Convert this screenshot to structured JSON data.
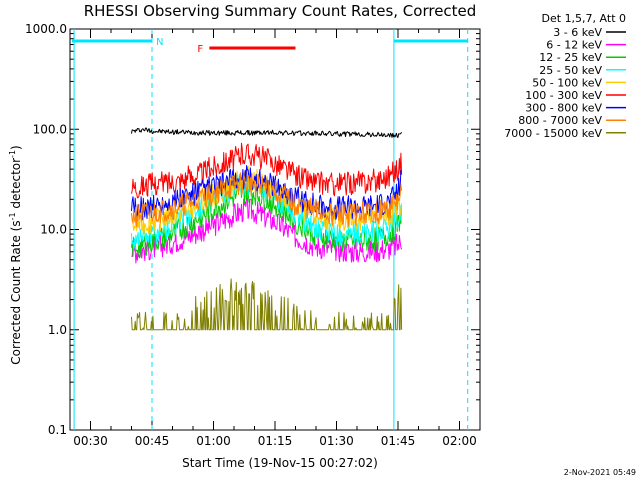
{
  "chart_data": {
    "type": "line",
    "title": "RHESSI Observing Summary Count Rates, Corrected",
    "xlabel": "Start Time (19-Nov-15 00:27:02)",
    "ylabel_main": "Corrected Count Rate (s",
    "ylabel_sup1": "-1",
    "ylabel_mid": " detector",
    "ylabel_sup2": "-1",
    "ylabel_end": ")",
    "y_scale": "log",
    "xlim": [
      "00:25",
      "02:05"
    ],
    "ylim": [
      0.1,
      1000
    ],
    "x_ticks": [
      {
        "t": "00:30",
        "label": "00:30"
      },
      {
        "t": "00:45",
        "label": "00:45"
      },
      {
        "t": "01:00",
        "label": "01:00"
      },
      {
        "t": "01:15",
        "label": "01:15"
      },
      {
        "t": "01:30",
        "label": "01:30"
      },
      {
        "t": "01:45",
        "label": "01:45"
      },
      {
        "t": "02:00",
        "label": "02:00"
      }
    ],
    "y_ticks": [
      {
        "v": 1000,
        "label": "1000.0"
      },
      {
        "v": 100,
        "label": "100.0"
      },
      {
        "v": 10,
        "label": "10.0"
      },
      {
        "v": 1,
        "label": "1.0"
      },
      {
        "v": 0.1,
        "label": "0.1"
      }
    ],
    "legend_title": "Det 1,5,7, Att 0",
    "legend_position": "top-right outside",
    "series": [
      {
        "name": "3 - 6 keV",
        "color": "#000000",
        "x": [
          "00:40",
          "00:43",
          "00:45",
          "00:50",
          "00:55",
          "01:00",
          "01:05",
          "01:10",
          "01:15",
          "01:20",
          "01:25",
          "01:30",
          "01:35",
          "01:40",
          "01:43",
          "01:45",
          "01:46"
        ],
        "y": [
          95,
          100,
          96,
          94,
          93,
          92,
          92,
          92,
          93,
          91,
          91,
          90,
          89,
          88,
          87,
          86,
          96
        ]
      },
      {
        "name": "6 - 12 keV",
        "color": "#ff00ff",
        "x": [
          "00:40",
          "00:45",
          "00:50",
          "00:55",
          "01:00",
          "01:05",
          "01:08",
          "01:10",
          "01:15",
          "01:20",
          "01:25",
          "01:30",
          "01:35",
          "01:40",
          "01:43",
          "01:45",
          "01:46"
        ],
        "y": [
          6,
          6.5,
          7.5,
          9,
          11,
          14,
          16,
          15,
          12,
          8.5,
          6.8,
          6.3,
          6,
          6.2,
          6.5,
          7,
          8
        ]
      },
      {
        "name": "12 - 25 keV",
        "color": "#00cc00",
        "x": [
          "00:40",
          "00:45",
          "00:50",
          "00:55",
          "01:00",
          "01:05",
          "01:08",
          "01:10",
          "01:15",
          "01:20",
          "01:25",
          "01:30",
          "01:35",
          "01:40",
          "01:43",
          "01:45",
          "01:46"
        ],
        "y": [
          6.5,
          7.5,
          9,
          12,
          16,
          21,
          24,
          23,
          18,
          12,
          9,
          7.8,
          7.5,
          8,
          9,
          11,
          15
        ]
      },
      {
        "name": "25 - 50 keV",
        "color": "#00ffff",
        "x": [
          "00:40",
          "00:45",
          "00:50",
          "00:55",
          "01:00",
          "01:05",
          "01:08",
          "01:10",
          "01:15",
          "01:20",
          "01:25",
          "01:30",
          "01:35",
          "01:40",
          "01:43",
          "01:45",
          "01:46"
        ],
        "y": [
          8,
          9,
          11,
          15,
          20,
          26,
          29,
          28,
          22,
          14,
          10.5,
          9.2,
          9,
          9.5,
          10.5,
          12,
          17
        ]
      },
      {
        "name": "50 - 100 keV",
        "color": "#ffcc00",
        "x": [
          "00:40",
          "00:45",
          "00:50",
          "00:55",
          "01:00",
          "01:05",
          "01:08",
          "01:10",
          "01:15",
          "01:20",
          "01:25",
          "01:30",
          "01:35",
          "01:40",
          "01:43",
          "01:45",
          "01:46"
        ],
        "y": [
          11,
          12,
          14,
          17,
          22,
          28,
          34,
          31,
          25,
          17,
          13.5,
          12.5,
          12.5,
          13,
          14,
          16,
          21
        ]
      },
      {
        "name": "100 - 300 keV",
        "color": "#ff0000",
        "x": [
          "00:40",
          "00:45",
          "00:50",
          "00:55",
          "01:00",
          "01:05",
          "01:08",
          "01:10",
          "01:15",
          "01:20",
          "01:25",
          "01:30",
          "01:35",
          "01:40",
          "01:43",
          "01:45",
          "01:46"
        ],
        "y": [
          27,
          28,
          30,
          34,
          42,
          52,
          58,
          55,
          46,
          35,
          29,
          28,
          29,
          31,
          35,
          40,
          46
        ]
      },
      {
        "name": "300 - 800 keV",
        "color": "#0000ff",
        "x": [
          "00:40",
          "00:45",
          "00:50",
          "00:55",
          "01:00",
          "01:05",
          "01:08",
          "01:10",
          "01:15",
          "01:20",
          "01:25",
          "01:30",
          "01:35",
          "01:40",
          "01:43",
          "01:45",
          "01:46"
        ],
        "y": [
          16,
          17,
          19,
          22,
          27,
          31,
          33,
          32,
          28,
          21,
          17.5,
          16.5,
          16.5,
          17.5,
          19,
          24,
          34
        ]
      },
      {
        "name": "800 - 7000 keV",
        "color": "#ff8000",
        "x": [
          "00:40",
          "00:45",
          "00:50",
          "00:55",
          "01:00",
          "01:05",
          "01:08",
          "01:10",
          "01:15",
          "01:20",
          "01:25",
          "01:30",
          "01:35",
          "01:40",
          "01:43",
          "01:45",
          "01:46"
        ],
        "y": [
          13.5,
          14.5,
          16,
          19,
          23,
          27,
          29,
          28,
          24,
          18,
          15,
          14,
          14,
          15,
          16,
          19,
          25
        ]
      },
      {
        "name": "7000 - 15000 keV",
        "color": "#808000",
        "x": [
          "00:40",
          "00:45",
          "00:50",
          "00:54",
          "00:56",
          "01:00",
          "01:05",
          "01:08",
          "01:10",
          "01:15",
          "01:18",
          "01:20",
          "01:25",
          "01:30",
          "01:35",
          "01:40",
          "01:43",
          "01:44",
          "01:45",
          "01:46"
        ],
        "y": [
          1,
          1,
          1,
          1,
          1.6,
          2,
          2.2,
          2.3,
          2,
          1.7,
          1.5,
          1.2,
          1,
          1,
          1,
          1,
          1,
          1.4,
          1.8,
          2.5
        ]
      }
    ],
    "flag_segments": [
      {
        "label": "N",
        "color": "#00e5ff",
        "start": "00:25",
        "end": "00:45"
      },
      {
        "label": "",
        "color": "#00e5ff",
        "start": "01:44",
        "end": "02:02"
      },
      {
        "label": "F",
        "color": "#ff0000",
        "start": "00:59",
        "end": "01:20"
      }
    ],
    "night_boundaries": [
      {
        "t": "00:26",
        "style": "solid"
      },
      {
        "t": "00:45",
        "style": "dashed"
      },
      {
        "t": "01:44",
        "style": "solid"
      },
      {
        "t": "02:02",
        "style": "dashed"
      }
    ]
  },
  "footer": {
    "timestamp": "2-Nov-2021 05:49"
  }
}
